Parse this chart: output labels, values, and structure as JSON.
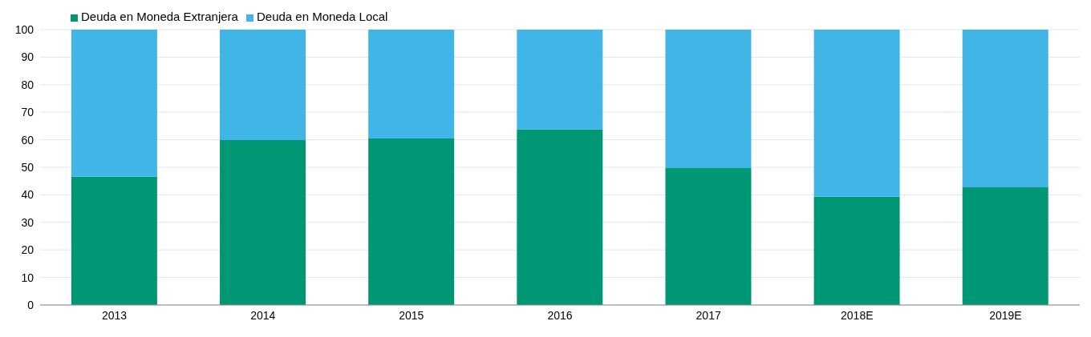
{
  "chart_data": {
    "type": "bar",
    "stacked": true,
    "categories": [
      "2013",
      "2014",
      "2015",
      "2016",
      "2017",
      "2018E",
      "2019E"
    ],
    "series": [
      {
        "name": "Deuda en Moneda Extranjera",
        "color": "#009775",
        "values": [
          46.6,
          59.9,
          60.5,
          63.8,
          49.7,
          39.3,
          42.7
        ]
      },
      {
        "name": "Deuda en Moneda Local",
        "color": "#41b5e6",
        "values": [
          53.4,
          40.1,
          39.5,
          36.2,
          50.3,
          60.7,
          57.3
        ]
      }
    ],
    "ylim": [
      0,
      100
    ],
    "yticks": [
      0,
      10,
      20,
      30,
      40,
      50,
      60,
      70,
      80,
      90,
      100
    ],
    "grid": "y",
    "legend": "top left"
  }
}
